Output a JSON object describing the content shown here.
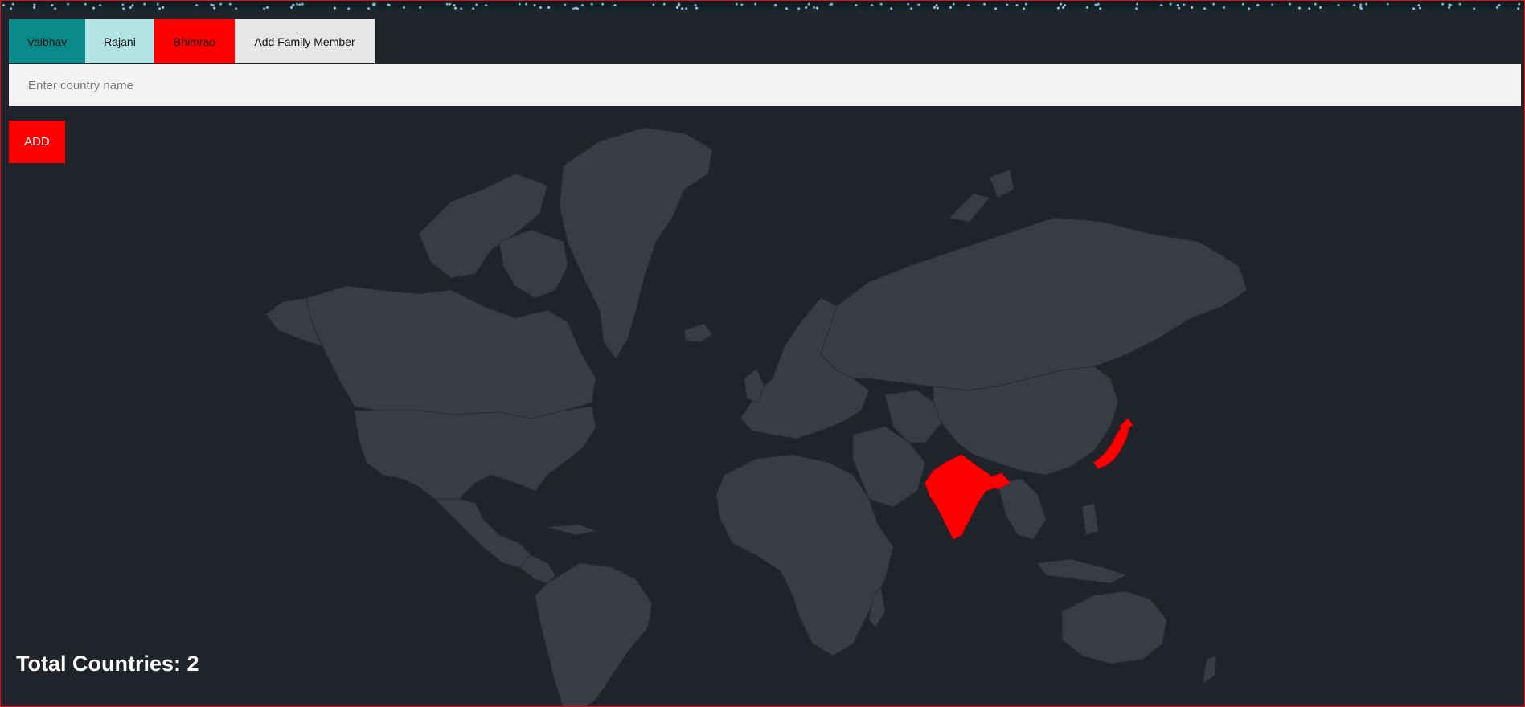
{
  "family_tabs": [
    {
      "label": "Vaibhav",
      "color": "#0a8a8a"
    },
    {
      "label": "Rajani",
      "color": "#b4e3e6"
    },
    {
      "label": "Bhimrao",
      "color": "#ff0000"
    },
    {
      "label": "Add Family Member",
      "color": "#e6e6e6"
    }
  ],
  "country_input": {
    "placeholder": "Enter country name",
    "value": ""
  },
  "add_button": {
    "label": "ADD",
    "color": "#ff0000"
  },
  "map": {
    "visited_countries": [
      "India",
      "Japan"
    ],
    "visited_color": "#ff0000",
    "land_color": "#393c45",
    "background_color": "#21232b"
  },
  "summary": {
    "total_label": "Total Countries: 2"
  }
}
